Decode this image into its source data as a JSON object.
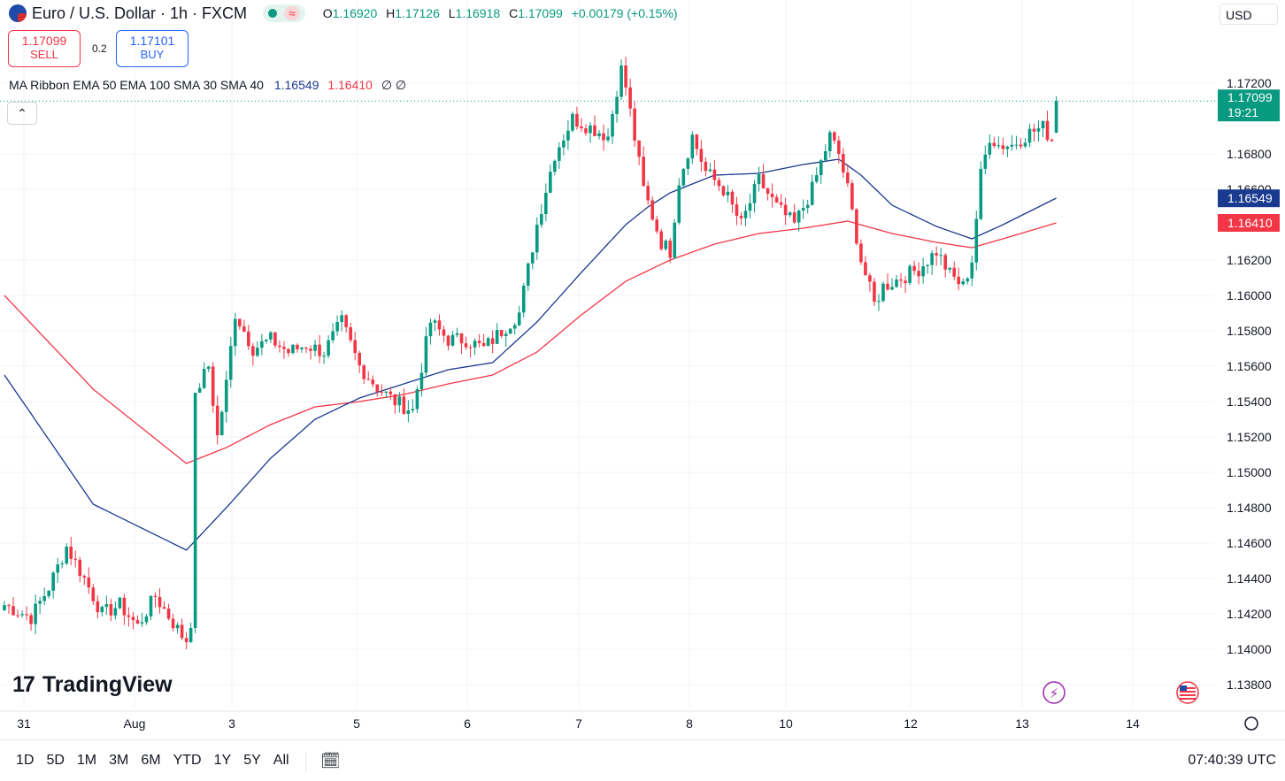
{
  "header": {
    "symbol": "Euro / U.S. Dollar · 1h · FXCM",
    "ohlc": {
      "o_label": "O",
      "o": "1.16920",
      "h_label": "H",
      "h": "1.17126",
      "l_label": "L",
      "l": "1.16918",
      "c_label": "C",
      "c": "1.17099",
      "change": "+0.00179 (+0.15%)"
    },
    "currency": "USD",
    "wave_icon": "≈"
  },
  "trade": {
    "sell_price": "1.17099",
    "sell_label": "SELL",
    "spread": "0.2",
    "buy_price": "1.17101",
    "buy_label": "BUY"
  },
  "indicator": {
    "label": "MA Ribbon EMA 50 EMA 100 SMA 30 SMA 40",
    "value1": "1.16549",
    "value2": "1.16410",
    "empty": "∅ ∅"
  },
  "collapse_icon": "chevron-up-icon",
  "logo_text": "TradingView",
  "ranges": [
    "1D",
    "5D",
    "1M",
    "3M",
    "6M",
    "YTD",
    "1Y",
    "5Y",
    "All"
  ],
  "clock": "07:40:39 UTC",
  "colors": {
    "up": "#089981",
    "down": "#f23645",
    "ema50": "#1a3a8f",
    "ema100": "#f23645"
  },
  "chart_data": {
    "type": "candlestick",
    "symbol": "EURUSD",
    "interval": "1h",
    "y_ticks": [
      "1.13800",
      "1.14000",
      "1.14200",
      "1.14400",
      "1.14600",
      "1.14800",
      "1.15000",
      "1.15200",
      "1.15400",
      "1.15600",
      "1.15800",
      "1.16000",
      "1.16200",
      "1.16600",
      "1.16800",
      "1.17200"
    ],
    "ylim": [
      1.1367,
      1.1752
    ],
    "x_ticks": [
      "31",
      "Aug",
      "3",
      "5",
      "6",
      "7",
      "8",
      "10",
      "12",
      "13",
      "14"
    ],
    "last_price": {
      "value": "1.17099",
      "countdown": "19:21"
    },
    "series_labels": [
      {
        "name": "EMA 50",
        "value": "1.16549"
      },
      {
        "name": "EMA 100",
        "value": "1.16410"
      }
    ],
    "anchors_close": [
      [
        0,
        1.1425
      ],
      [
        6,
        1.1418
      ],
      [
        10,
        1.1435
      ],
      [
        14,
        1.1458
      ],
      [
        18,
        1.144
      ],
      [
        22,
        1.142
      ],
      [
        26,
        1.1425
      ],
      [
        30,
        1.1413
      ],
      [
        34,
        1.143
      ],
      [
        38,
        1.1415
      ],
      [
        41,
        1.1404
      ],
      [
        42,
        1.1412
      ],
      [
        43,
        1.1545
      ],
      [
        46,
        1.156
      ],
      [
        48,
        1.152
      ],
      [
        50,
        1.155
      ],
      [
        52,
        1.159
      ],
      [
        56,
        1.157
      ],
      [
        60,
        1.1575
      ],
      [
        64,
        1.1568
      ],
      [
        68,
        1.1572
      ],
      [
        72,
        1.1568
      ],
      [
        76,
        1.1585
      ],
      [
        80,
        1.156
      ],
      [
        84,
        1.1548
      ],
      [
        88,
        1.154
      ],
      [
        92,
        1.1535
      ],
      [
        96,
        1.1585
      ],
      [
        100,
        1.1575
      ],
      [
        104,
        1.1575
      ],
      [
        108,
        1.157
      ],
      [
        112,
        1.158
      ],
      [
        116,
        1.159
      ],
      [
        120,
        1.164
      ],
      [
        124,
        1.168
      ],
      [
        128,
        1.17
      ],
      [
        132,
        1.1695
      ],
      [
        136,
        1.169
      ],
      [
        139,
        1.173
      ],
      [
        140,
        1.1718
      ],
      [
        144,
        1.166
      ],
      [
        148,
        1.163
      ],
      [
        150,
        1.1625
      ],
      [
        152,
        1.1665
      ],
      [
        155,
        1.169
      ],
      [
        158,
        1.167
      ],
      [
        162,
        1.166
      ],
      [
        166,
        1.164
      ],
      [
        170,
        1.1665
      ],
      [
        174,
        1.165
      ],
      [
        178,
        1.164
      ],
      [
        182,
        1.166
      ],
      [
        186,
        1.169
      ],
      [
        188,
        1.168
      ],
      [
        190,
        1.166
      ],
      [
        193,
        1.162
      ],
      [
        196,
        1.1595
      ],
      [
        198,
        1.1605
      ],
      [
        202,
        1.161
      ],
      [
        206,
        1.1615
      ],
      [
        210,
        1.1625
      ],
      [
        213,
        1.1612
      ],
      [
        216,
        1.1605
      ],
      [
        218,
        1.162
      ],
      [
        220,
        1.1668
      ],
      [
        222,
        1.169
      ],
      [
        224,
        1.1685
      ],
      [
        227,
        1.1685
      ],
      [
        231,
        1.1692
      ],
      [
        234,
        1.1695
      ],
      [
        236,
        1.1688
      ],
      [
        237,
        1.1712
      ]
    ],
    "ema50_anchors": [
      [
        0,
        1.1555
      ],
      [
        20,
        1.1482
      ],
      [
        41,
        1.1456
      ],
      [
        50,
        1.148
      ],
      [
        60,
        1.1508
      ],
      [
        70,
        1.153
      ],
      [
        80,
        1.1542
      ],
      [
        90,
        1.155
      ],
      [
        100,
        1.1558
      ],
      [
        110,
        1.1562
      ],
      [
        120,
        1.1585
      ],
      [
        130,
        1.1613
      ],
      [
        140,
        1.164
      ],
      [
        145,
        1.165
      ],
      [
        150,
        1.1658
      ],
      [
        160,
        1.1668
      ],
      [
        170,
        1.1669
      ],
      [
        180,
        1.1674
      ],
      [
        188,
        1.1677
      ],
      [
        193,
        1.1668
      ],
      [
        200,
        1.1651
      ],
      [
        210,
        1.1639
      ],
      [
        218,
        1.1632
      ],
      [
        225,
        1.164
      ],
      [
        237,
        1.1655
      ]
    ],
    "ema100_anchors": [
      [
        0,
        1.16
      ],
      [
        20,
        1.1547
      ],
      [
        41,
        1.1505
      ],
      [
        50,
        1.1514
      ],
      [
        60,
        1.1527
      ],
      [
        70,
        1.1537
      ],
      [
        80,
        1.154
      ],
      [
        90,
        1.1544
      ],
      [
        100,
        1.155
      ],
      [
        110,
        1.1555
      ],
      [
        120,
        1.1568
      ],
      [
        130,
        1.1589
      ],
      [
        140,
        1.1608
      ],
      [
        150,
        1.162
      ],
      [
        160,
        1.1629
      ],
      [
        170,
        1.1635
      ],
      [
        180,
        1.1638
      ],
      [
        190,
        1.1642
      ],
      [
        200,
        1.1635
      ],
      [
        210,
        1.163
      ],
      [
        218,
        1.1627
      ],
      [
        225,
        1.1632
      ],
      [
        237,
        1.1641
      ]
    ]
  }
}
